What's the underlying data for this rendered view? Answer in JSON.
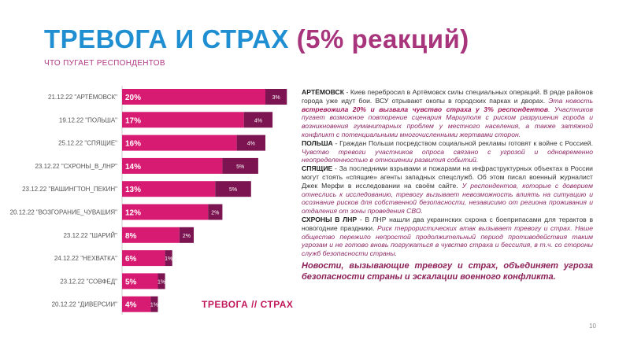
{
  "header": {
    "title_main": "ТРЕВОГА И СТРАХ",
    "title_pct": "(5% реакций)",
    "subtitle": "ЧТО ПУГАЕТ РЕСПОНДЕНТОВ"
  },
  "chart_label": "ТРЕВОГА // СТРАХ",
  "chart_data": {
    "type": "bar",
    "orientation": "horizontal",
    "stacked": true,
    "categories": [
      "21.12.22 \"АРТЁМОВСК\"",
      "19.12.22 \"ПОЛЬША\"",
      "25.12.22 \"СПЯЩИЕ\"",
      "23.12.22 \"СХРОНЫ_В_ЛНР\"",
      "23.12.22 \"ВАШИНГТОН_ПЕКИН\"",
      "20.12.22 \"ВОЗГОРАНИЕ_ЧУВАШИЯ\"",
      "23.12.22 \"ШАРИЙ\"",
      "24.12.22 \"НЕХВАТКА\"",
      "23.12.22 \"СОВФЕД\"",
      "20.12.22 \"ДИВЕРСИИ\""
    ],
    "series": [
      {
        "values": [
          20,
          17,
          16,
          14,
          13,
          12,
          8,
          6,
          5,
          4
        ],
        "labels": [
          "20%",
          "17%",
          "16%",
          "14%",
          "13%",
          "12%",
          "8%",
          "6%",
          "5%",
          "4%"
        ],
        "color": "#d81b72"
      },
      {
        "values": [
          3,
          4,
          4,
          5,
          5,
          2,
          2,
          1,
          1,
          1
        ],
        "labels": [
          "3%",
          "4%",
          "4%",
          "5%",
          "5%",
          "2%",
          "2%",
          "1%",
          "1%",
          "1%"
        ],
        "color": "#7b1450"
      }
    ],
    "xlim": [
      0,
      23
    ]
  },
  "text": {
    "p1_head": "АРТЁМОВСК",
    "p1_a": " - Киев перебросил в Артёмовск силы специальных операций. В ряде районов города уже идут бои. ВСУ отрывают окопы в городских парках и дворах. ",
    "p1_b": "Эта новость ",
    "p1_c": "встревожила 20% и вызвала чувство страха у 3% респондентов",
    "p1_d": ". Участников пугает возможное повторение сценария Мариуполя с риском разрушения города и возникновения гуманитарных проблем у местного населения, а также затяжной конфликт с потенциальными многочисленными жертвами сторон.",
    "p2_head": "ПОЛЬША",
    "p2_a": " - Граждан Польши посредством социальной рекламы готовят к войне с Россией. ",
    "p2_b": "Чувство тревоги участников опроса связано с угрозой и одновременно неопределенностью в отношении развития событий.",
    "p3_head": "СПЯЩИЕ",
    "p3_a": " - За последними взрывами и пожарами на инфраструктурных объектах в России могут стоять «спящие» агенты западных спецслужб. Об этом писал военный журналист Джек Мерфи в исследовании на своём сайте. ",
    "p3_b": "У респондентов, которые с доверием отнеслись к исследованию, тревогу вызывает невозможность влиять на ситуацию и осознание рисков для собственной безопасности, независимо от региона проживания и отдаления от зоны проведения СВО.",
    "p4_head": "СХРОНЫ В ЛНР",
    "p4_a": " - В ЛНР нашли два украинских схрона с боеприпасами для терактов в новогодние праздники. ",
    "p4_b": "Риск террористических атак вызывает тревогу и страх. Наше общество пережило непростой продолжительный период противодействия таким угрозам и не готово вновь погружаться в чувство страха и бессилия, в т.ч. со стороны служб безопасности страны.",
    "footer": "Новости, вызывающие тревогу и страх, объединяет угроза безопасности страны и эскалации военного конфликта."
  },
  "page_number": "10"
}
